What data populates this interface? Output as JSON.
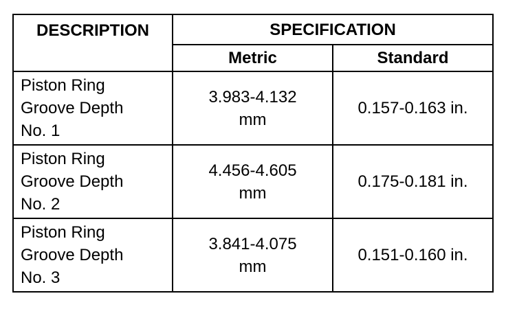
{
  "header": {
    "description": "DESCRIPTION",
    "specification": "SPECIFICATION",
    "metric": "Metric",
    "standard": "Standard"
  },
  "table": {
    "rows": [
      {
        "description": [
          "Piston Ring",
          "Groove Depth",
          "No. 1"
        ],
        "metric": [
          "3.983-4.132",
          "mm"
        ],
        "standard": "0.157-0.163 in."
      },
      {
        "description": [
          "Piston Ring",
          "Groove Depth",
          "No. 2"
        ],
        "metric": [
          "4.456-4.605",
          "mm"
        ],
        "standard": "0.175-0.181 in."
      },
      {
        "description": [
          "Piston Ring",
          "Groove Depth",
          "No. 3"
        ],
        "metric": [
          "3.841-4.075",
          "mm"
        ],
        "standard": "0.151-0.160 in."
      }
    ]
  }
}
